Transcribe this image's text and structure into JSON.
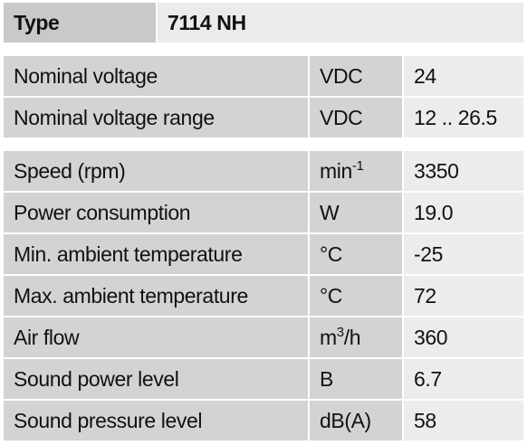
{
  "header": {
    "label": "Type",
    "value": "7114 NH"
  },
  "groups": [
    {
      "rows": [
        {
          "label": "Nominal voltage",
          "unit": {
            "text": "VDC"
          },
          "value": "24"
        },
        {
          "label": "Nominal voltage range",
          "unit": {
            "text": "VDC"
          },
          "value": "12 .. 26.5"
        }
      ]
    },
    {
      "rows": [
        {
          "label": "Speed (rpm)",
          "unit": {
            "text": "min",
            "sup": "-1"
          },
          "value": "3350"
        },
        {
          "label": "Power consumption",
          "unit": {
            "text": "W"
          },
          "value": "19.0"
        },
        {
          "label": "Min. ambient temperature",
          "unit": {
            "text": "°C"
          },
          "value": "-25"
        },
        {
          "label": "Max. ambient temperature",
          "unit": {
            "text": "°C"
          },
          "value": "72"
        },
        {
          "label": "Air flow",
          "unit": {
            "text": "m",
            "sup": "3",
            "after": "/h"
          },
          "value": "360"
        },
        {
          "label": "Sound power level",
          "unit": {
            "text": "B"
          },
          "value": "6.7"
        },
        {
          "label": "Sound pressure level",
          "unit": {
            "text": "dB(A)"
          },
          "value": "58"
        }
      ]
    }
  ]
}
